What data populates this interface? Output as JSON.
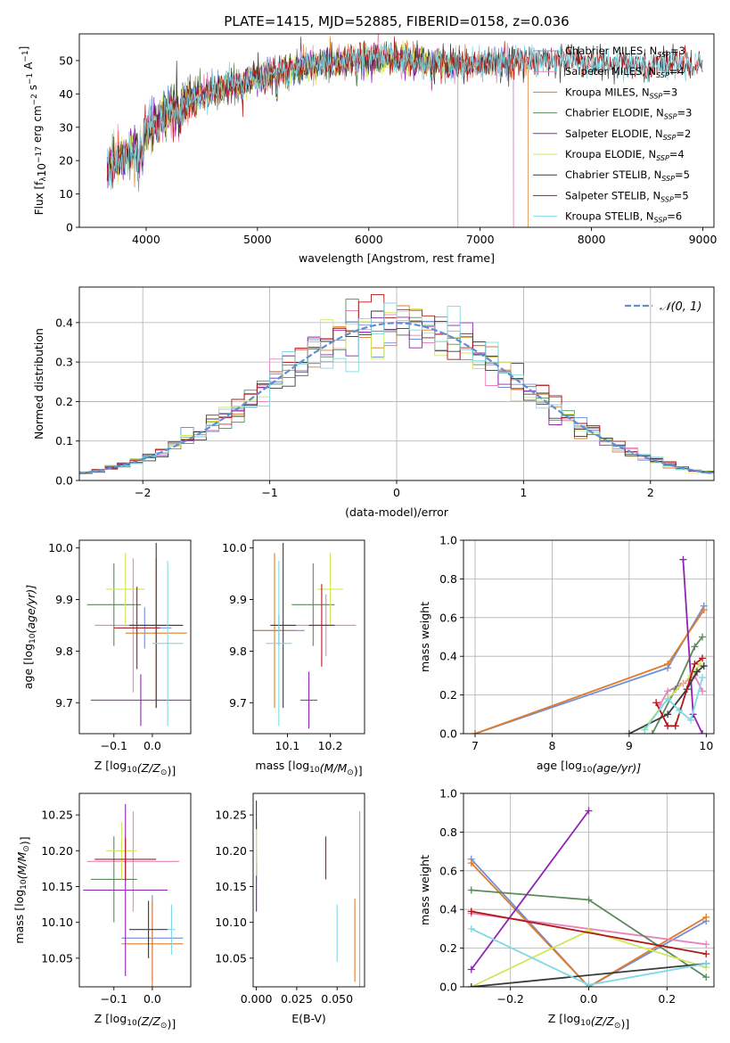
{
  "figure": {
    "title": "PLATE=1415, MJD=52885, FIBERID=0158, z=0.036"
  },
  "colors": {
    "Chabrier MILES": "#6f8fdc",
    "Salpeter MILES": "#e784b8",
    "Kroupa MILES": "#e07b28",
    "Chabrier ELODIE": "#5c8a5c",
    "Salpeter ELODIE": "#8e25b0",
    "Kroupa ELODIE": "#d0e858",
    "Chabrier STELIB": "#3a3a3a",
    "Salpeter STELIB": "#b01818",
    "Kroupa STELIB": "#7fd8e4",
    "normal": "#5b8fd6"
  },
  "chart_data": [
    {
      "id": "spectrum",
      "type": "line",
      "xlabel": "wavelength [Angstrom, rest frame]",
      "ylabel_main": "Flux [f",
      "ylabel_sub": "λ",
      "ylabel_mid": "10",
      "ylabel_sup1": "−17",
      "ylabel_rest": " erg cm",
      "ylabel_sup2": "−2",
      "ylabel_s": " s",
      "ylabel_sup3": "−1",
      "ylabel_a": " A",
      "ylabel_sup4": "−1",
      "ylabel_end": "]",
      "xlim": [
        3400,
        9100
      ],
      "ylim": [
        0,
        58
      ],
      "xticks": [
        4000,
        5000,
        6000,
        7000,
        8000,
        9000
      ],
      "yticks": [
        0,
        10,
        20,
        30,
        40,
        50
      ],
      "grid": false,
      "legend_position": "top-right",
      "continuum": [
        [
          3650,
          18
        ],
        [
          3750,
          20
        ],
        [
          3850,
          22
        ],
        [
          3950,
          26
        ],
        [
          4050,
          31
        ],
        [
          4200,
          34
        ],
        [
          4400,
          38
        ],
        [
          4600,
          41
        ],
        [
          4800,
          43
        ],
        [
          5000,
          45
        ],
        [
          5200,
          47
        ],
        [
          5500,
          49
        ],
        [
          5800,
          50
        ],
        [
          6100,
          51
        ],
        [
          6400,
          50
        ],
        [
          6700,
          49
        ],
        [
          7000,
          49
        ],
        [
          7400,
          50
        ],
        [
          7800,
          50
        ],
        [
          8200,
          49
        ],
        [
          8600,
          49
        ],
        [
          8900,
          49
        ]
      ],
      "dips": [
        [
          3934,
          8
        ],
        [
          3968,
          7
        ],
        [
          4101,
          4
        ],
        [
          4300,
          5
        ],
        [
          4861,
          4
        ],
        [
          5175,
          6
        ],
        [
          5270,
          3
        ],
        [
          5890,
          4
        ],
        [
          6563,
          4
        ],
        [
          8500,
          3
        ],
        [
          8542,
          3
        ],
        [
          8662,
          3
        ]
      ],
      "legend": [
        {
          "name": "Chabrier MILES",
          "n": "3",
          "ends": 7300
        },
        {
          "name": "Salpeter MILES",
          "n": "4",
          "ends": 7300
        },
        {
          "name": "Kroupa MILES",
          "n": "3",
          "ends": 7430
        },
        {
          "name": "Chabrier ELODIE",
          "n": "3",
          "ends": 6800
        },
        {
          "name": "Salpeter ELODIE",
          "n": "2",
          "ends": 6800
        },
        {
          "name": "Kroupa ELODIE",
          "n": "4",
          "ends": 6800
        },
        {
          "name": "Chabrier STELIB",
          "n": "5",
          "ends": 9000
        },
        {
          "name": "Salpeter STELIB",
          "n": "5",
          "ends": 9000
        },
        {
          "name": "Kroupa STELIB",
          "n": "6",
          "ends": 9000
        }
      ],
      "legend_prefix_sub": "SSP"
    },
    {
      "id": "residuals",
      "type": "histogram",
      "xlabel": "(data-model)/error",
      "ylabel": "Normed distribution",
      "xlim": [
        -2.5,
        2.5
      ],
      "ylim": [
        0,
        0.49
      ],
      "xticks": [
        -2,
        -1,
        0,
        1,
        2
      ],
      "yticks": [
        0.0,
        0.1,
        0.2,
        0.3,
        0.4
      ],
      "grid": true,
      "legend_label": "𝒩(0, 1)",
      "legend_position": "top-right",
      "bin_width": 0.1
    },
    {
      "id": "age_vs_Z",
      "type": "errorbar",
      "xlabel_main": "Z [log",
      "xlabel_sub": "10",
      "xlabel_rest": "(Z/Z",
      "xlabel_end": ")]",
      "ylabel_main": "age  [log",
      "ylabel_sub": "10",
      "ylabel_rest": "(age/yr)]",
      "xlim": [
        -0.19,
        0.1
      ],
      "ylim": [
        9.64,
        10.015
      ],
      "xticks": [
        -0.1,
        0.0
      ],
      "yticks": [
        9.7,
        9.8,
        9.9,
        10.0
      ],
      "points": [
        {
          "model": "Chabrier MILES",
          "x": -0.02,
          "xerr": 0.07,
          "y": 9.845,
          "yerr": 0.04
        },
        {
          "model": "Salpeter MILES",
          "x": -0.05,
          "xerr": 0.1,
          "y": 9.85,
          "yerr": 0.13
        },
        {
          "model": "Kroupa MILES",
          "x": 0.01,
          "xerr": 0.08,
          "y": 9.835,
          "yerr": 0.145
        },
        {
          "model": "Chabrier ELODIE",
          "x": -0.1,
          "xerr": 0.07,
          "y": 9.89,
          "yerr": 0.08
        },
        {
          "model": "Salpeter ELODIE",
          "x": -0.03,
          "xerr": 0.13,
          "y": 9.705,
          "yerr": 0.05
        },
        {
          "model": "Kroupa ELODIE",
          "x": -0.07,
          "xerr": 0.05,
          "y": 9.92,
          "yerr": 0.07
        },
        {
          "model": "Chabrier STELIB",
          "x": 0.01,
          "xerr": 0.07,
          "y": 9.85,
          "yerr": 0.16
        },
        {
          "model": "Salpeter STELIB",
          "x": -0.04,
          "xerr": 0.06,
          "y": 9.845,
          "yerr": 0.08
        },
        {
          "model": "Kroupa STELIB",
          "x": 0.04,
          "xerr": 0.04,
          "y": 9.815,
          "yerr": 0.16
        }
      ]
    },
    {
      "id": "age_vs_mass",
      "type": "errorbar",
      "xlabel_main": "mass [log",
      "xlabel_sub": "10",
      "xlabel_rest": "(M/M",
      "xlabel_end": ")]",
      "xlim": [
        10.02,
        10.28
      ],
      "ylim": [
        9.64,
        10.015
      ],
      "xticks": [
        10.1,
        10.2
      ],
      "yticks": [
        9.7,
        9.8,
        9.9,
        10.0
      ],
      "points": [
        {
          "model": "Chabrier MILES",
          "x": 10.08,
          "xerr": 0.06,
          "y": 9.84,
          "yerr": 0.03
        },
        {
          "model": "Salpeter MILES",
          "x": 10.19,
          "xerr": 0.07,
          "y": 9.85,
          "yerr": 0.06
        },
        {
          "model": "Kroupa MILES",
          "x": 10.07,
          "xerr": 0.05,
          "y": 9.84,
          "yerr": 0.15
        },
        {
          "model": "Chabrier ELODIE",
          "x": 10.16,
          "xerr": 0.05,
          "y": 9.89,
          "yerr": 0.08
        },
        {
          "model": "Salpeter ELODIE",
          "x": 10.15,
          "xerr": 0.02,
          "y": 9.705,
          "yerr": 0.055
        },
        {
          "model": "Kroupa ELODIE",
          "x": 10.2,
          "xerr": 0.03,
          "y": 9.92,
          "yerr": 0.07
        },
        {
          "model": "Chabrier STELIB",
          "x": 10.09,
          "xerr": 0.03,
          "y": 9.85,
          "yerr": 0.16
        },
        {
          "model": "Salpeter STELIB",
          "x": 10.18,
          "xerr": 0.03,
          "y": 9.85,
          "yerr": 0.08
        },
        {
          "model": "Kroupa STELIB",
          "x": 10.08,
          "xerr": 0.03,
          "y": 9.815,
          "yerr": 0.16
        }
      ]
    },
    {
      "id": "weight_vs_age",
      "type": "line",
      "xlabel_main": "age  [log",
      "xlabel_sub": "10",
      "xlabel_rest": "(age/yr)]",
      "ylabel": "mass weight",
      "xlim": [
        6.85,
        10.1
      ],
      "ylim": [
        0,
        1.0
      ],
      "xticks": [
        7,
        8,
        9,
        10
      ],
      "yticks": [
        0.0,
        0.2,
        0.4,
        0.6,
        0.8,
        1.0
      ],
      "grid": true,
      "series": [
        {
          "model": "Chabrier MILES",
          "x": [
            7.0,
            9.5,
            9.97
          ],
          "y": [
            0.0,
            0.34,
            0.66
          ]
        },
        {
          "model": "Kroupa MILES",
          "x": [
            7.0,
            9.5,
            9.97
          ],
          "y": [
            0.0,
            0.36,
            0.64
          ]
        },
        {
          "model": "Salpeter MILES",
          "x": [
            9.4,
            9.5,
            9.7,
            9.85,
            9.95
          ],
          "y": [
            0.15,
            0.22,
            0.26,
            0.3,
            0.22
          ]
        },
        {
          "model": "Chabrier ELODIE",
          "x": [
            9.3,
            9.6,
            9.85,
            9.95
          ],
          "y": [
            0.0,
            0.23,
            0.45,
            0.5
          ]
        },
        {
          "model": "Salpeter ELODIE",
          "x": [
            9.7,
            9.83,
            9.95
          ],
          "y": [
            0.9,
            0.1,
            0.0
          ]
        },
        {
          "model": "Kroupa ELODIE",
          "x": [
            9.2,
            9.5,
            9.8,
            9.92
          ],
          "y": [
            0.03,
            0.18,
            0.3,
            0.36
          ]
        },
        {
          "model": "Chabrier STELIB",
          "x": [
            9.0,
            9.5,
            9.75,
            9.88,
            9.97
          ],
          "y": [
            0.0,
            0.1,
            0.23,
            0.32,
            0.35
          ]
        },
        {
          "model": "Salpeter STELIB",
          "x": [
            9.35,
            9.5,
            9.6,
            9.85,
            9.95
          ],
          "y": [
            0.16,
            0.04,
            0.04,
            0.36,
            0.39
          ]
        },
        {
          "model": "Kroupa STELIB",
          "x": [
            9.2,
            9.5,
            9.65,
            9.8,
            9.95
          ],
          "y": [
            0.02,
            0.18,
            0.12,
            0.07,
            0.29
          ]
        }
      ]
    },
    {
      "id": "mass_vs_Z",
      "type": "errorbar",
      "xlabel_main": "Z [log",
      "xlabel_sub": "10",
      "xlabel_rest": "(Z/Z",
      "xlabel_end": ")]",
      "ylabel_main": "mass [log",
      "ylabel_sub": "10",
      "ylabel_rest": "(M/M",
      "ylabel_end": ")]",
      "xlim": [
        -0.19,
        0.1
      ],
      "ylim": [
        10.01,
        10.28
      ],
      "xticks": [
        -0.1,
        0.0
      ],
      "yticks": [
        10.05,
        10.1,
        10.15,
        10.2,
        10.25
      ],
      "points": [
        {
          "model": "Chabrier MILES",
          "x": 0.0,
          "xerr": 0.08,
          "y": 10.078,
          "yerr": 0.06
        },
        {
          "model": "Salpeter MILES",
          "x": -0.05,
          "xerr": 0.12,
          "y": 10.185,
          "yerr": 0.07
        },
        {
          "model": "Kroupa MILES",
          "x": 0.0,
          "xerr": 0.08,
          "y": 10.07,
          "yerr": 0.06
        },
        {
          "model": "Chabrier ELODIE",
          "x": -0.1,
          "xerr": 0.06,
          "y": 10.16,
          "yerr": 0.06
        },
        {
          "model": "Salpeter ELODIE",
          "x": -0.07,
          "xerr": 0.11,
          "y": 10.145,
          "yerr": 0.12
        },
        {
          "model": "Kroupa ELODIE",
          "x": -0.08,
          "xerr": 0.04,
          "y": 10.2,
          "yerr": 0.04
        },
        {
          "model": "Chabrier STELIB",
          "x": -0.01,
          "xerr": 0.05,
          "y": 10.09,
          "yerr": 0.04
        },
        {
          "model": "Salpeter STELIB",
          "x": -0.07,
          "xerr": 0.08,
          "y": 10.188,
          "yerr": 0.03
        },
        {
          "model": "Kroupa STELIB",
          "x": 0.05,
          "xerr": 0.01,
          "y": 10.09,
          "yerr": 0.035
        }
      ]
    },
    {
      "id": "mass_vs_ebv",
      "type": "errorbar",
      "xlabel": "E(B-V)",
      "xlim": [
        -0.002,
        0.067
      ],
      "ylim": [
        10.01,
        10.28
      ],
      "xticks": [
        0.0,
        0.025,
        0.05
      ],
      "xticklabels": [
        "0.000",
        "0.025",
        "0.050"
      ],
      "yticks": [
        10.05,
        10.1,
        10.15,
        10.2,
        10.25
      ],
      "points": [
        {
          "model": "Chabrier MILES",
          "x": 0.0,
          "xerr": 0.0,
          "y": 10.155,
          "yerr": 0.04
        },
        {
          "model": "Salpeter MILES",
          "x": 0.064,
          "xerr": 0.0,
          "y": 10.13,
          "yerr": 0.125
        },
        {
          "model": "Kroupa MILES",
          "x": 0.061,
          "xerr": 0.0,
          "y": 10.075,
          "yerr": 0.058
        },
        {
          "model": "Chabrier ELODIE",
          "x": 0.0,
          "xerr": 0.0,
          "y": 10.2,
          "yerr": 0.04
        },
        {
          "model": "Salpeter ELODIE",
          "x": 0.0,
          "xerr": 0.0,
          "y": 10.15,
          "yerr": 0.035
        },
        {
          "model": "Kroupa ELODIE",
          "x": 0.0,
          "xerr": 0.0,
          "y": 10.2,
          "yerr": 0.035
        },
        {
          "model": "Chabrier STELIB",
          "x": 0.0,
          "xerr": 0.0,
          "y": 10.25,
          "yerr": 0.02
        },
        {
          "model": "Salpeter STELIB",
          "x": 0.043,
          "xerr": 0.0,
          "y": 10.19,
          "yerr": 0.03
        },
        {
          "model": "Kroupa STELIB",
          "x": 0.05,
          "xerr": 0.0,
          "y": 10.085,
          "yerr": 0.04
        }
      ]
    },
    {
      "id": "weight_vs_Z",
      "type": "line",
      "xlabel_main": "Z [log",
      "xlabel_sub": "10",
      "xlabel_rest": "(Z/Z",
      "xlabel_end": ")]",
      "ylabel": "mass weight",
      "xlim": [
        -0.32,
        0.32
      ],
      "ylim": [
        0,
        1.0
      ],
      "xticks": [
        -0.2,
        0.0,
        0.2
      ],
      "yticks": [
        0.0,
        0.2,
        0.4,
        0.6,
        0.8,
        1.0
      ],
      "grid": true,
      "series": [
        {
          "model": "Chabrier MILES",
          "x": [
            -0.3,
            0.0,
            0.3
          ],
          "y": [
            0.66,
            0.0,
            0.34
          ]
        },
        {
          "model": "Kroupa MILES",
          "x": [
            -0.3,
            0.0,
            0.3
          ],
          "y": [
            0.64,
            0.0,
            0.36
          ]
        },
        {
          "model": "Salpeter MILES",
          "x": [
            -0.3,
            0.3
          ],
          "y": [
            0.38,
            0.22
          ]
        },
        {
          "model": "Chabrier ELODIE",
          "x": [
            -0.3,
            0.0,
            0.3
          ],
          "y": [
            0.5,
            0.45,
            0.05
          ]
        },
        {
          "model": "Salpeter ELODIE",
          "x": [
            -0.3,
            0.0
          ],
          "y": [
            0.09,
            0.91
          ]
        },
        {
          "model": "Kroupa ELODIE",
          "x": [
            -0.3,
            0.0,
            0.3
          ],
          "y": [
            0.0,
            0.29,
            0.1
          ]
        },
        {
          "model": "Chabrier STELIB",
          "x": [
            -0.3,
            0.3
          ],
          "y": [
            0.0,
            0.12
          ]
        },
        {
          "model": "Salpeter STELIB",
          "x": [
            -0.3,
            0.3
          ],
          "y": [
            0.39,
            0.17
          ]
        },
        {
          "model": "Kroupa STELIB",
          "x": [
            -0.3,
            0.0,
            0.3
          ],
          "y": [
            0.3,
            0.01,
            0.12
          ]
        }
      ]
    }
  ]
}
